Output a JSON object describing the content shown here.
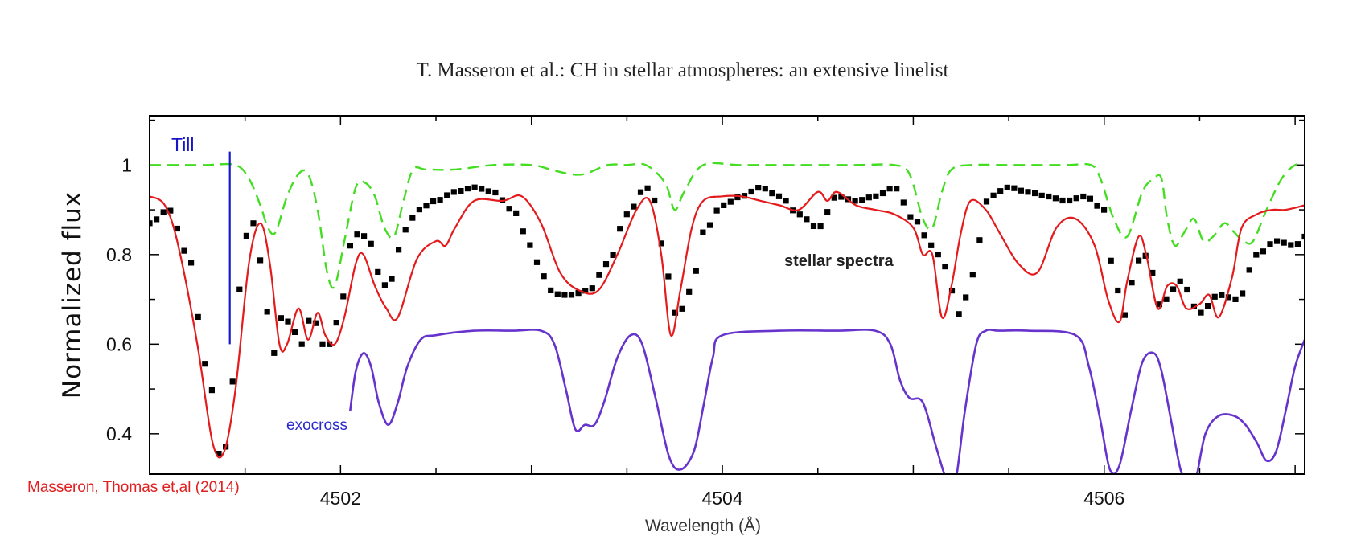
{
  "page": {
    "title": "T. Masseron et al.: CH in stellar atmospheres: an extensive linelist"
  },
  "chart_data": {
    "type": "line",
    "title": "",
    "xlabel": "Wavelength (Å)",
    "ylabel": "Normalized flux",
    "xlim": [
      4501.0,
      4507.05
    ],
    "ylim": [
      0.31,
      1.11
    ],
    "xticks": [
      4502,
      4504,
      4506
    ],
    "xtick_labels": [
      "4502",
      "4504",
      "4506"
    ],
    "yticks": [
      0.4,
      0.6,
      0.8,
      1.0
    ],
    "ytick_labels": [
      "0.4",
      "0.6",
      "0.8",
      "1"
    ],
    "colors": {
      "stellar": "#000000",
      "masseron": "#e41a1c",
      "till_ch_lines": "#44dd22",
      "exocross": "#6633cc",
      "till_marker": "#1a1ac8"
    },
    "series": [
      {
        "key": "stellar",
        "style": "square-markers",
        "x": [
          4501.0,
          4501.1,
          4501.2,
          4501.3,
          4501.38,
          4501.44,
          4501.48,
          4501.52,
          4501.56,
          4501.6,
          4501.65,
          4501.7,
          4501.75,
          4501.8,
          4501.85,
          4501.9,
          4501.95,
          4502.0,
          4502.05,
          4502.1,
          4502.15,
          4502.2,
          4502.25,
          4502.3,
          4502.35,
          4502.4,
          4502.5,
          4502.6,
          4502.7,
          4502.8,
          4502.9,
          4503.0,
          4503.05,
          4503.1,
          4503.15,
          4503.2,
          4503.3,
          4503.4,
          4503.5,
          4503.6,
          4503.65,
          4503.7,
          4503.75,
          4503.8,
          4503.85,
          4503.9,
          4504.0,
          4504.1,
          4504.2,
          4504.3,
          4504.4,
          4504.5,
          4504.6,
          4504.7,
          4504.8,
          4504.9,
          4505.0,
          4505.1,
          4505.15,
          4505.2,
          4505.25,
          4505.3,
          4505.4,
          4505.5,
          4505.6,
          4505.7,
          4505.8,
          4505.9,
          4506.0,
          4506.05,
          4506.1,
          4506.15,
          4506.2,
          4506.25,
          4506.3,
          4506.35,
          4506.4,
          4506.5,
          4506.6,
          4506.7,
          4506.8,
          4506.9,
          4507.0,
          4507.05
        ],
        "y": [
          0.87,
          0.9,
          0.8,
          0.55,
          0.33,
          0.52,
          0.75,
          0.87,
          0.87,
          0.7,
          0.58,
          0.67,
          0.63,
          0.6,
          0.67,
          0.6,
          0.6,
          0.68,
          0.82,
          0.85,
          0.83,
          0.76,
          0.72,
          0.81,
          0.86,
          0.9,
          0.92,
          0.94,
          0.95,
          0.94,
          0.9,
          0.82,
          0.76,
          0.72,
          0.71,
          0.71,
          0.72,
          0.78,
          0.89,
          0.95,
          0.92,
          0.78,
          0.67,
          0.68,
          0.75,
          0.85,
          0.91,
          0.93,
          0.95,
          0.93,
          0.89,
          0.86,
          0.93,
          0.92,
          0.93,
          0.95,
          0.88,
          0.82,
          0.79,
          0.72,
          0.66,
          0.75,
          0.93,
          0.95,
          0.94,
          0.93,
          0.92,
          0.93,
          0.9,
          0.76,
          0.66,
          0.74,
          0.81,
          0.76,
          0.68,
          0.72,
          0.74,
          0.67,
          0.71,
          0.7,
          0.8,
          0.83,
          0.82,
          0.84
        ]
      },
      {
        "key": "masseron",
        "style": "solid-line",
        "x": [
          4501.0,
          4501.08,
          4501.15,
          4501.25,
          4501.33,
          4501.39,
          4501.45,
          4501.52,
          4501.58,
          4501.63,
          4501.68,
          4501.72,
          4501.78,
          4501.83,
          4501.88,
          4501.92,
          4501.97,
          4502.02,
          4502.08,
          4502.12,
          4502.18,
          4502.24,
          4502.3,
          4502.4,
          4502.5,
          4502.55,
          4502.6,
          4502.7,
          4502.85,
          4502.95,
          4503.05,
          4503.15,
          4503.25,
          4503.35,
          4503.45,
          4503.55,
          4503.62,
          4503.68,
          4503.73,
          4503.78,
          4503.84,
          4503.9,
          4504.0,
          4504.1,
          4504.2,
          4504.3,
          4504.4,
          4504.5,
          4504.55,
          4504.6,
          4504.7,
          4504.8,
          4504.9,
          4505.0,
          4505.05,
          4505.1,
          4505.15,
          4505.2,
          4505.25,
          4505.3,
          4505.38,
          4505.45,
          4505.55,
          4505.65,
          4505.75,
          4505.85,
          4505.95,
          4506.02,
          4506.08,
          4506.12,
          4506.18,
          4506.22,
          4506.28,
          4506.33,
          4506.38,
          4506.43,
          4506.5,
          4506.55,
          4506.6,
          4506.67,
          4506.72,
          4506.8,
          4506.88,
          4506.95,
          4507.05
        ],
        "y": [
          0.93,
          0.91,
          0.82,
          0.6,
          0.38,
          0.36,
          0.5,
          0.78,
          0.87,
          0.78,
          0.6,
          0.6,
          0.68,
          0.61,
          0.67,
          0.62,
          0.6,
          0.66,
          0.78,
          0.8,
          0.73,
          0.68,
          0.66,
          0.79,
          0.83,
          0.82,
          0.86,
          0.92,
          0.92,
          0.93,
          0.87,
          0.76,
          0.72,
          0.72,
          0.8,
          0.9,
          0.92,
          0.8,
          0.62,
          0.72,
          0.86,
          0.92,
          0.93,
          0.93,
          0.92,
          0.91,
          0.9,
          0.94,
          0.92,
          0.94,
          0.91,
          0.9,
          0.89,
          0.86,
          0.8,
          0.8,
          0.66,
          0.73,
          0.85,
          0.92,
          0.9,
          0.85,
          0.78,
          0.76,
          0.86,
          0.88,
          0.82,
          0.7,
          0.65,
          0.74,
          0.84,
          0.8,
          0.68,
          0.73,
          0.73,
          0.68,
          0.69,
          0.71,
          0.66,
          0.75,
          0.86,
          0.89,
          0.9,
          0.9,
          0.91
        ]
      },
      {
        "key": "till_ch_lines",
        "style": "dashed-line",
        "x": [
          4501.0,
          4501.15,
          4501.3,
          4501.45,
          4501.52,
          4501.58,
          4501.62,
          4501.66,
          4501.72,
          4501.78,
          4501.83,
          4501.88,
          4501.93,
          4501.97,
          4502.02,
          4502.08,
          4502.13,
          4502.18,
          4502.23,
          4502.28,
          4502.33,
          4502.38,
          4502.45,
          4502.6,
          4502.8,
          4503.0,
          4503.1,
          4503.2,
          4503.28,
          4503.4,
          4503.5,
          4503.6,
          4503.7,
          4503.75,
          4503.8,
          4503.9,
          4504.1,
          4504.4,
          4504.7,
          4504.9,
          4504.98,
          4505.05,
          4505.1,
          4505.15,
          4505.2,
          4505.3,
          4505.5,
          4505.8,
          4505.93,
          4505.98,
          4506.05,
          4506.12,
          4506.2,
          4506.26,
          4506.3,
          4506.33,
          4506.37,
          4506.42,
          4506.47,
          4506.52,
          4506.57,
          4506.63,
          4506.68,
          4506.73,
          4506.78,
          4506.85,
          4506.93,
          4507.0,
          4507.05
        ],
        "y": [
          1.0,
          1.0,
          1.0,
          1.0,
          0.97,
          0.91,
          0.86,
          0.85,
          0.93,
          0.98,
          0.98,
          0.9,
          0.76,
          0.73,
          0.83,
          0.95,
          0.96,
          0.93,
          0.86,
          0.84,
          0.92,
          0.99,
          0.99,
          0.99,
          1.0,
          1.0,
          0.99,
          0.98,
          0.98,
          1.0,
          1.0,
          1.0,
          0.96,
          0.9,
          0.94,
          1.0,
          1.0,
          1.0,
          1.0,
          1.0,
          0.98,
          0.88,
          0.86,
          0.94,
          0.99,
          1.0,
          1.0,
          1.0,
          1.0,
          0.97,
          0.88,
          0.84,
          0.94,
          0.97,
          0.97,
          0.88,
          0.82,
          0.85,
          0.88,
          0.83,
          0.84,
          0.87,
          0.85,
          0.83,
          0.83,
          0.9,
          0.97,
          1.0,
          1.0
        ]
      },
      {
        "key": "exocross",
        "style": "solid-line",
        "x": [
          4502.05,
          4502.08,
          4502.12,
          4502.16,
          4502.2,
          4502.25,
          4502.3,
          4502.35,
          4502.42,
          4502.5,
          4502.7,
          4502.9,
          4503.05,
          4503.12,
          4503.18,
          4503.23,
          4503.28,
          4503.33,
          4503.38,
          4503.45,
          4503.52,
          4503.58,
          4503.65,
          4503.72,
          4503.78,
          4503.85,
          4503.9,
          4503.95,
          4504.0,
          4504.3,
          4504.6,
          4504.8,
          4504.88,
          4504.93,
          4504.98,
          4505.05,
          4505.12,
          4505.18,
          4505.22,
          4505.27,
          4505.33,
          4505.38,
          4505.45,
          4505.6,
          4505.85,
          4505.92,
          4505.98,
          4506.03,
          4506.08,
          4506.14,
          4506.2,
          4506.26,
          4506.3,
          4506.35,
          4506.4,
          4506.44,
          4506.48,
          4506.53,
          4506.6,
          4506.68,
          4506.74,
          4506.8,
          4506.85,
          4506.9,
          4506.95,
          4507.0,
          4507.05
        ],
        "y": [
          0.45,
          0.54,
          0.58,
          0.55,
          0.47,
          0.42,
          0.47,
          0.55,
          0.61,
          0.62,
          0.63,
          0.63,
          0.63,
          0.6,
          0.5,
          0.41,
          0.42,
          0.42,
          0.47,
          0.57,
          0.62,
          0.6,
          0.48,
          0.35,
          0.32,
          0.36,
          0.46,
          0.57,
          0.62,
          0.63,
          0.63,
          0.63,
          0.6,
          0.52,
          0.48,
          0.47,
          0.37,
          0.29,
          0.29,
          0.45,
          0.6,
          0.63,
          0.63,
          0.63,
          0.62,
          0.55,
          0.43,
          0.32,
          0.33,
          0.45,
          0.56,
          0.58,
          0.54,
          0.43,
          0.32,
          0.29,
          0.3,
          0.4,
          0.44,
          0.44,
          0.42,
          0.38,
          0.34,
          0.36,
          0.45,
          0.55,
          0.61
        ]
      }
    ],
    "annotations": {
      "stellar_label": "stellar spectra",
      "exocross_label": "exocross",
      "till_label": "Till",
      "masseron_label": "Masseron, Thomas et,al (2014)"
    },
    "till_marker": {
      "x": 4501.42,
      "y_top": 1.03,
      "y_bottom": 0.6
    }
  }
}
